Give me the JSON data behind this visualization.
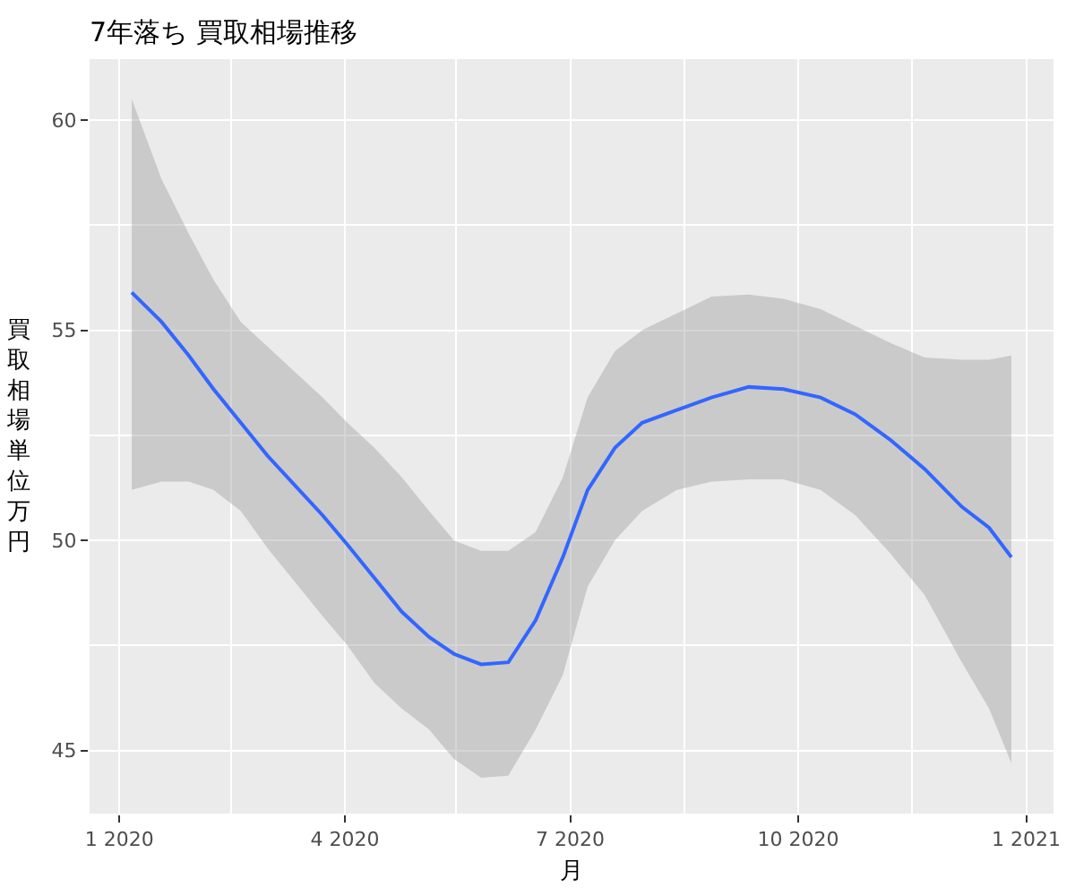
{
  "chart_data": {
    "type": "line",
    "title": "7年落ち 買取相場推移",
    "xlabel": "月",
    "ylabel": "買取相場単位万円",
    "x": [
      "2020-01-06",
      "2020-01-18",
      "2020-01-29",
      "2020-02-08",
      "2020-02-19",
      "2020-03-01",
      "2020-03-12",
      "2020-03-23",
      "2020-04-02",
      "2020-04-13",
      "2020-04-24",
      "2020-05-05",
      "2020-05-15",
      "2020-05-26",
      "2020-06-06",
      "2020-06-17",
      "2020-06-28",
      "2020-07-08",
      "2020-07-19",
      "2020-07-30",
      "2020-08-13",
      "2020-08-27",
      "2020-09-11",
      "2020-09-25",
      "2020-10-10",
      "2020-10-24",
      "2020-11-07",
      "2020-11-21",
      "2020-12-06",
      "2020-12-17",
      "2020-12-26"
    ],
    "series": [
      {
        "color": "#3366ff",
        "values": [
          55.9,
          55.2,
          54.4,
          53.6,
          52.8,
          52.0,
          51.3,
          50.6,
          49.9,
          49.1,
          48.3,
          47.7,
          47.3,
          47.05,
          47.1,
          48.1,
          49.6,
          51.2,
          52.2,
          52.8,
          53.1,
          53.4,
          53.65,
          53.6,
          53.4,
          53.0,
          52.4,
          51.7,
          50.8,
          50.3,
          49.6
        ],
        "lower": [
          51.2,
          51.4,
          51.4,
          51.2,
          50.7,
          49.8,
          49.0,
          48.2,
          47.5,
          46.6,
          46.0,
          45.5,
          44.8,
          44.35,
          44.4,
          45.5,
          46.8,
          48.9,
          50.0,
          50.7,
          51.2,
          51.4,
          51.45,
          51.45,
          51.2,
          50.6,
          49.7,
          48.7,
          47.1,
          46.0,
          44.7
        ],
        "upper": [
          60.5,
          58.6,
          57.3,
          56.2,
          55.2,
          54.6,
          54.0,
          53.4,
          52.8,
          52.2,
          51.5,
          50.7,
          50.0,
          49.75,
          49.75,
          50.2,
          51.5,
          53.4,
          54.5,
          55.0,
          55.4,
          55.8,
          55.85,
          55.75,
          55.5,
          55.1,
          54.7,
          54.35,
          54.3,
          54.3,
          54.4
        ]
      }
    ],
    "xlim": [
      "2019-12-20",
      "2021-01-12"
    ],
    "xticks": [
      {
        "value": "2020-01-01",
        "label": "1 2020"
      },
      {
        "value": "2020-04-01",
        "label": "4 2020"
      },
      {
        "value": "2020-07-01",
        "label": "7 2020"
      },
      {
        "value": "2020-10-01",
        "label": "10 2020"
      },
      {
        "value": "2021-01-01",
        "label": "1 2021"
      }
    ],
    "ylim": [
      43.5,
      61.45
    ],
    "yticks": [
      45,
      50,
      55,
      60
    ],
    "grid": true,
    "marker": "none",
    "line_style": "solid"
  }
}
